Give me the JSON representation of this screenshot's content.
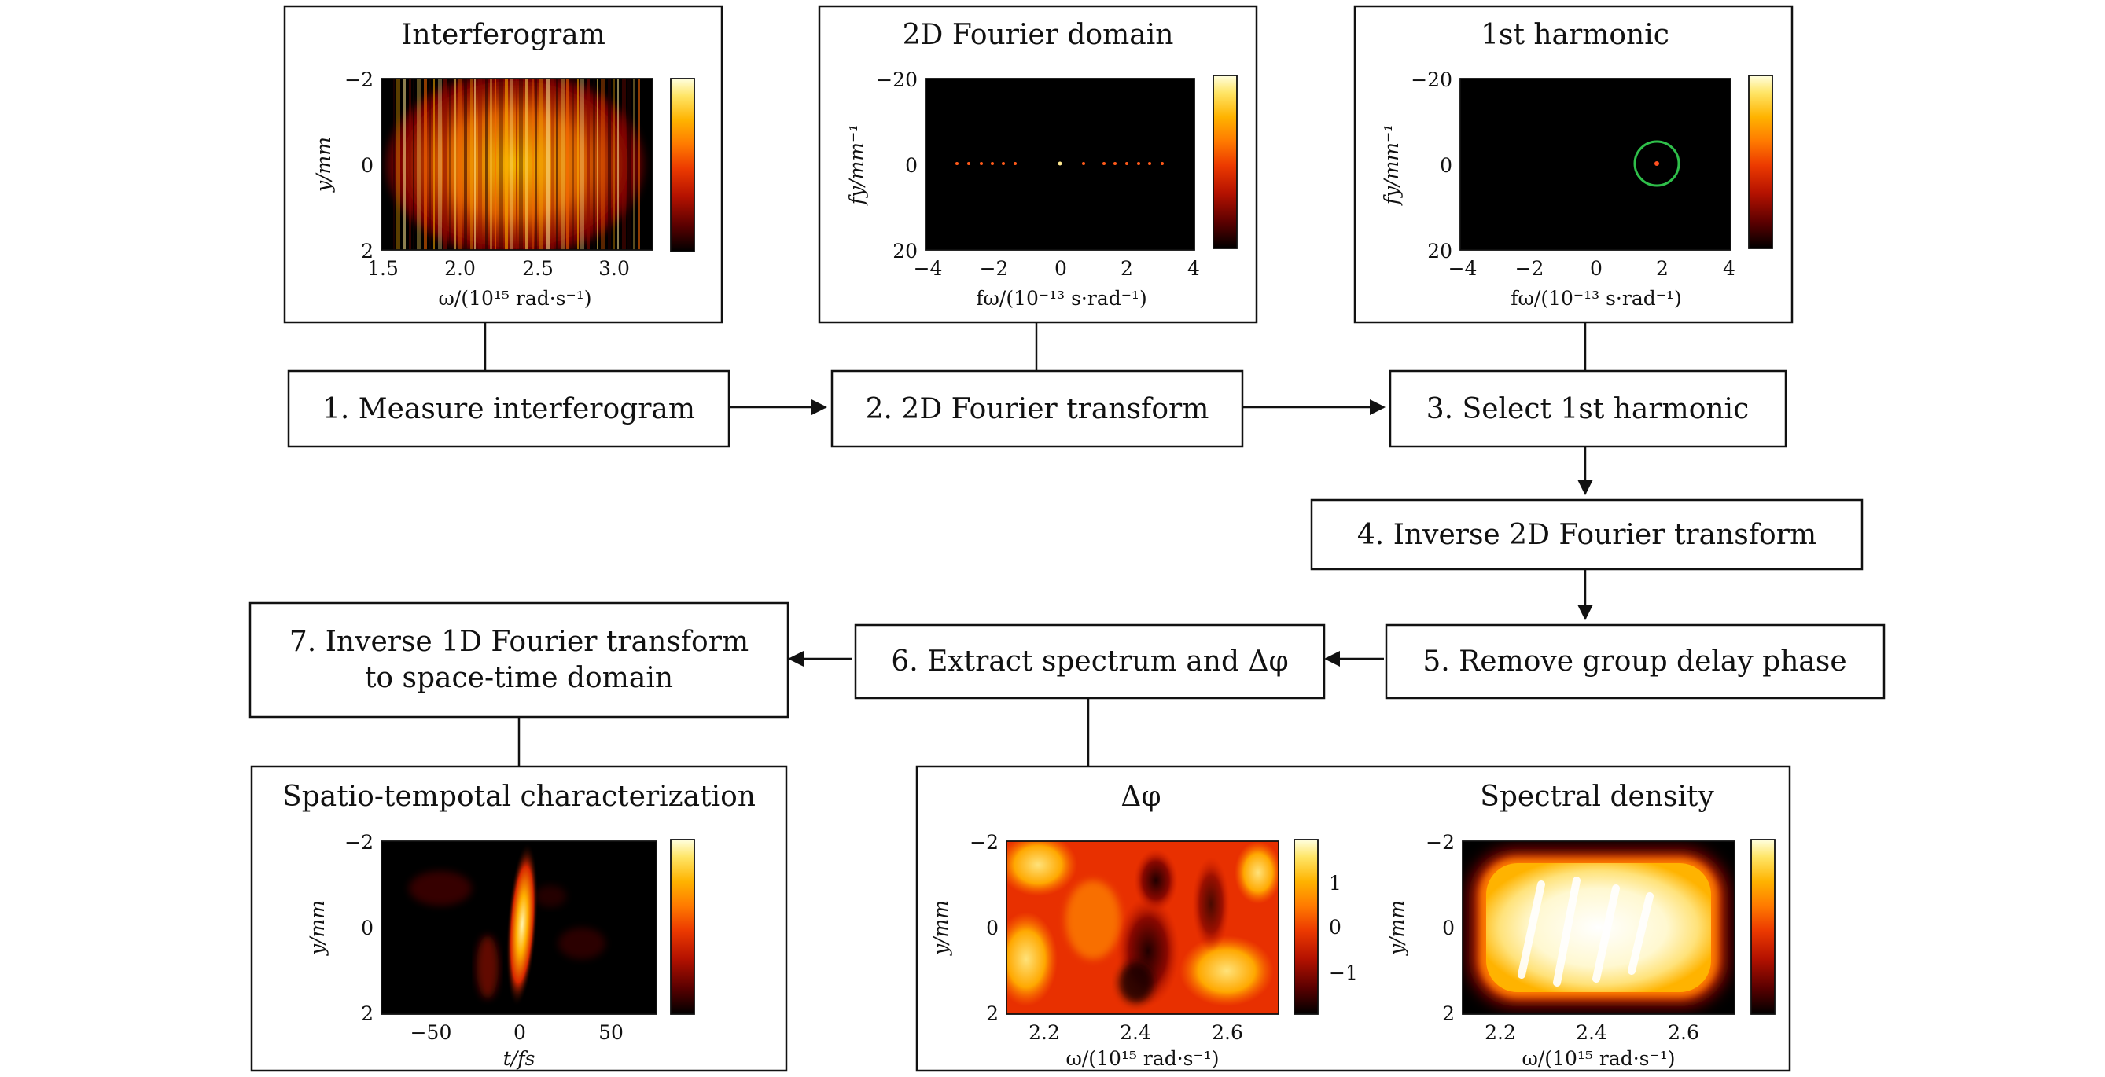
{
  "steps": {
    "s1": "1. Measure interferogram",
    "s2": "2. 2D Fourier transform",
    "s3": "3. Select 1st harmonic",
    "s4": "4. Inverse 2D Fourier transform",
    "s5": "5. Remove group delay phase",
    "s6": "6. Extract spectrum and Δφ",
    "s7_line1": "7. Inverse 1D Fourier transform",
    "s7_line2": "to space-time domain"
  },
  "panels": {
    "interferogram": {
      "title": "Interferogram",
      "xticks": [
        "1.5",
        "2.0",
        "2.5",
        "3.0"
      ],
      "yticks": [
        "−2",
        "0",
        "2"
      ],
      "xlabel": "ω/(10¹⁵ rad·s⁻¹)",
      "ylabel": "y/mm"
    },
    "fourier": {
      "title": "2D Fourier domain",
      "xticks": [
        "−4",
        "−2",
        "0",
        "2",
        "4"
      ],
      "yticks": [
        "−20",
        "0",
        "20"
      ],
      "xlabel": "fω/(10⁻¹³ s·rad⁻¹)",
      "ylabel": "fy/mm⁻¹"
    },
    "harmonic": {
      "title": "1st harmonic",
      "xticks": [
        "−4",
        "−2",
        "0",
        "2",
        "4"
      ],
      "yticks": [
        "−20",
        "0",
        "20"
      ],
      "xlabel": "fω/(10⁻¹³ s·rad⁻¹)",
      "ylabel": "fy/mm⁻¹"
    },
    "spatiotemporal": {
      "title": "Spatio-tempotal characterization",
      "xticks": [
        "−50",
        "0",
        "50"
      ],
      "yticks": [
        "−2",
        "0",
        "2"
      ],
      "xlabel": "t/fs",
      "ylabel": "y/mm"
    },
    "phase": {
      "title": "Δφ",
      "xticks": [
        "2.2",
        "2.4",
        "2.6"
      ],
      "yticks": [
        "−2",
        "0",
        "2"
      ],
      "cbticks": [
        "1",
        "0",
        "−1"
      ],
      "xlabel": "ω/(10¹⁵ rad·s⁻¹)",
      "ylabel": "y/mm"
    },
    "spectral": {
      "title": "Spectral density",
      "xticks": [
        "2.2",
        "2.4",
        "2.6"
      ],
      "yticks": [
        "−2",
        "0",
        "2"
      ],
      "xlabel": "ω/(10¹⁵ rad·s⁻¹)",
      "ylabel": "y/mm"
    }
  },
  "colors": {
    "colormap": [
      "#000000",
      "#5a0000",
      "#b51200",
      "#ec3a00",
      "#ff7a00",
      "#ffb300",
      "#ffe566",
      "#ffffe0"
    ],
    "harmonic_circle": "#2fbf4a"
  }
}
